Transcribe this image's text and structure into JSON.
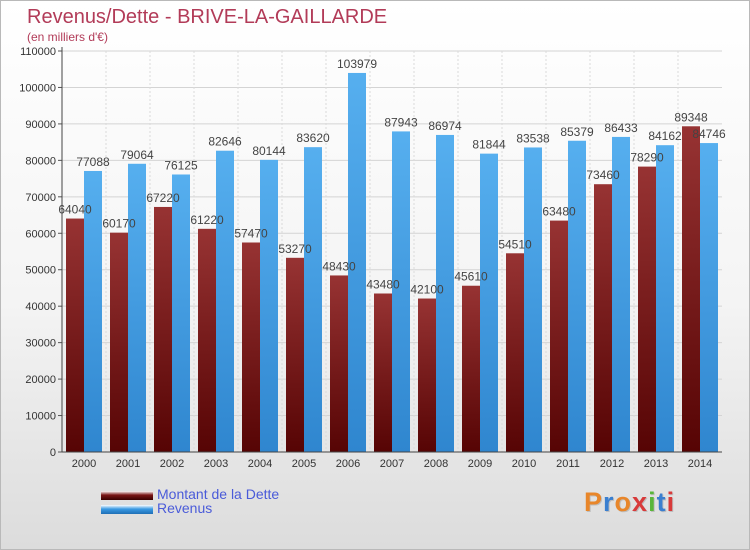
{
  "header": {
    "title": "Revenus/Dette - BRIVE-LA-GAILLARDE",
    "subtitle": "(en milliers d'€)"
  },
  "legend": {
    "items": [
      {
        "label": "Montant de la Dette",
        "color": "#7a1515"
      },
      {
        "label": "Revenus",
        "color": "#3a9ae3"
      }
    ]
  },
  "logo": {
    "text": "Proxiti",
    "colors": [
      "#e8862a",
      "#3a7fd0",
      "#e8862a",
      "#d83a3a",
      "#59b63a",
      "#3a7fd0",
      "#d83a3a"
    ]
  },
  "chart_data": {
    "type": "bar",
    "title": "Revenus/Dette - BRIVE-LA-GAILLARDE",
    "subtitle": "(en milliers d'€)",
    "categories": [
      "2000",
      "2001",
      "2002",
      "2003",
      "2004",
      "2005",
      "2006",
      "2007",
      "2008",
      "2009",
      "2010",
      "2011",
      "2012",
      "2013",
      "2014"
    ],
    "series": [
      {
        "name": "Montant de la Dette",
        "color": "#7a1515",
        "values": [
          64040,
          60170,
          67220,
          61220,
          57470,
          53270,
          48430,
          43480,
          42100,
          45610,
          54510,
          63480,
          73460,
          78290,
          89348
        ],
        "labels": [
          "64040",
          "60170",
          "67220",
          "61220",
          "57470",
          "53270",
          "48430",
          "43480",
          "42100",
          "45610",
          "54510",
          "63480",
          "73460",
          "78290",
          "89348"
        ]
      },
      {
        "name": "Revenus",
        "color": "#3a9ae3",
        "values": [
          77088,
          79064,
          76125,
          82646,
          80144,
          83620,
          103979,
          87943,
          86974,
          81844,
          83538,
          85379,
          86433,
          84162,
          84746
        ],
        "labels": [
          "77088",
          "79064",
          "76125",
          "82646",
          "80144",
          "83620",
          "103979",
          "87943",
          "86974",
          "81844",
          "83538",
          "85379",
          "86433",
          "84162",
          "84746"
        ]
      }
    ],
    "ylim": [
      0,
      110000
    ],
    "yticks": [
      0,
      10000,
      20000,
      30000,
      40000,
      50000,
      60000,
      70000,
      80000,
      90000,
      100000,
      110000
    ],
    "grid": true,
    "legend_position": "bottom-left"
  }
}
